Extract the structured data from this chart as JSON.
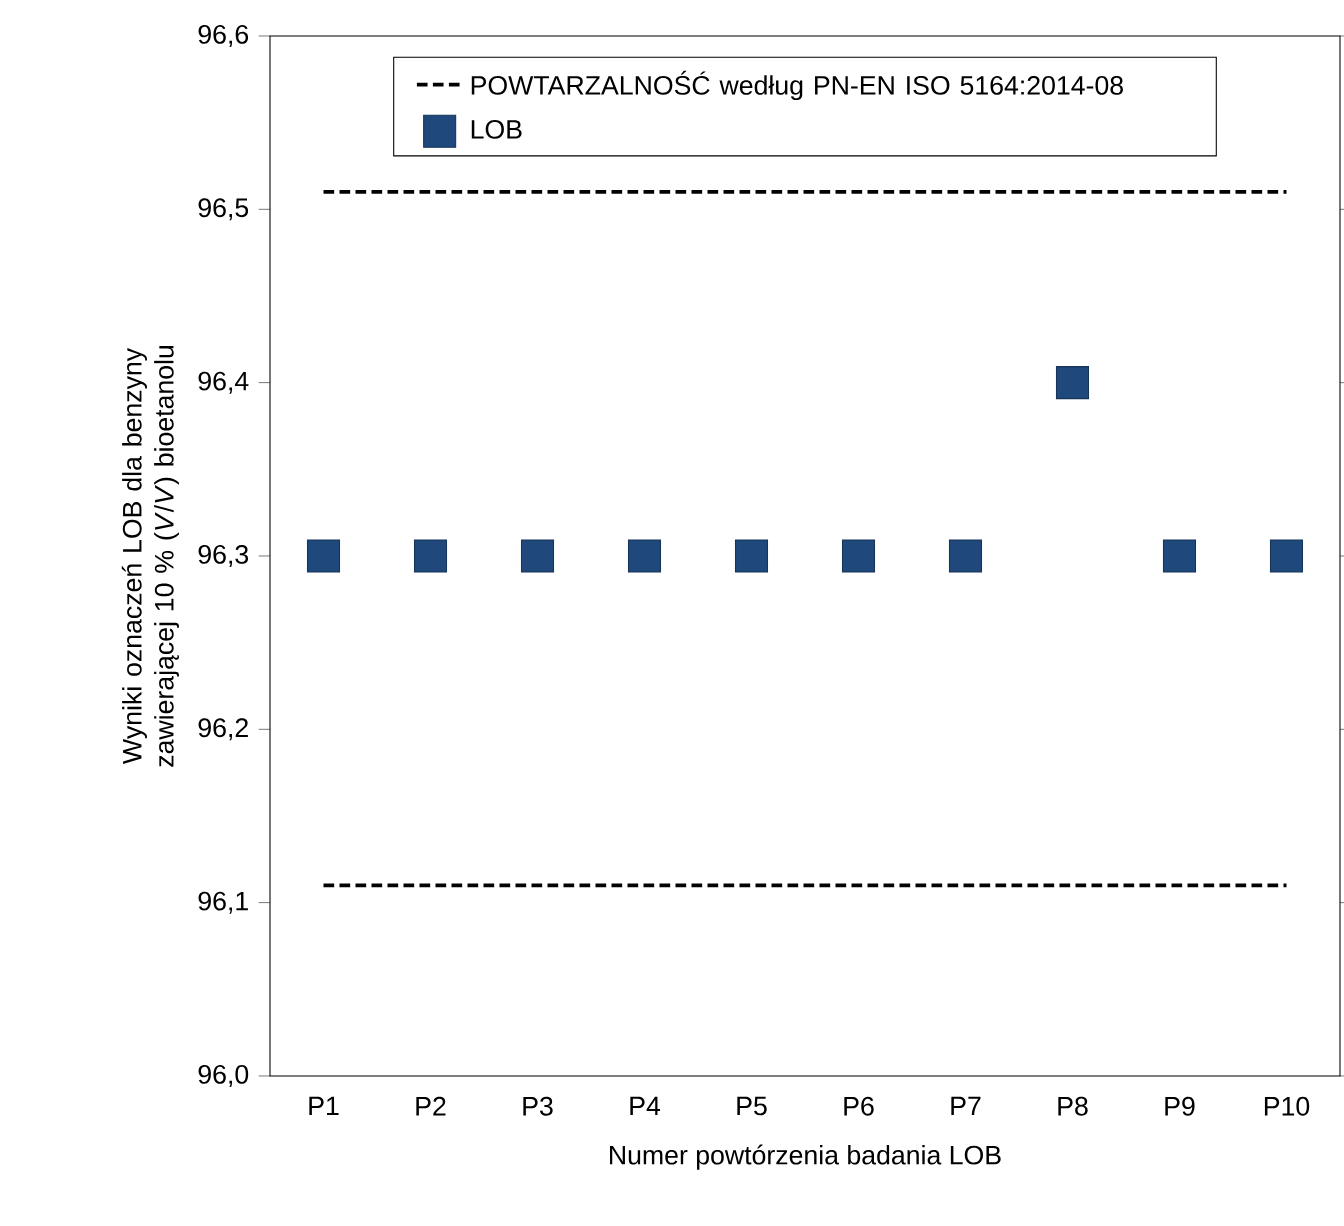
{
  "chart_data": {
    "type": "scatter",
    "xlabel": "Numer powtórzenia badania LOB",
    "ylabel": "Wyniki oznaczeń LOB dla benzyny zawierającej 10 % (*V*/*V*) bioetanolu",
    "categories": [
      "P1",
      "P2",
      "P3",
      "P4",
      "P5",
      "P6",
      "P7",
      "P8",
      "P9",
      "P10"
    ],
    "series": [
      {
        "name": "POWTARZALNOŚĆ według PN-EN ISO 5164:2014-08",
        "type": "line",
        "color": "#000000",
        "line_style": "dashed",
        "marker": "none",
        "values": [
          96.51,
          96.51,
          96.51,
          96.51,
          96.51,
          96.51,
          96.51,
          96.51,
          96.51,
          96.51
        ]
      },
      {
        "type": "line",
        "color": "#000000",
        "line_style": "dashed",
        "marker": "none",
        "values": [
          96.11,
          96.11,
          96.11,
          96.11,
          96.11,
          96.11,
          96.11,
          96.11,
          96.11,
          96.11
        ]
      },
      {
        "name": "LOB",
        "color": "#1f497d",
        "marker": "square",
        "values": [
          96.3,
          96.3,
          96.3,
          96.3,
          96.3,
          96.3,
          96.3,
          96.4,
          96.3,
          96.3
        ]
      }
    ],
    "ylim": [
      96.0,
      96.6
    ],
    "yticks": [
      {
        "value": 96.0,
        "label": "96,0"
      },
      {
        "value": 96.1,
        "label": "96,1"
      },
      {
        "value": 96.2,
        "label": "96,2"
      },
      {
        "value": 96.3,
        "label": "96,3"
      },
      {
        "value": 96.4,
        "label": "96,4"
      },
      {
        "value": 96.5,
        "label": "96,5"
      },
      {
        "value": 96.6,
        "label": "96,6"
      }
    ],
    "grid": false,
    "legend": "top"
  }
}
